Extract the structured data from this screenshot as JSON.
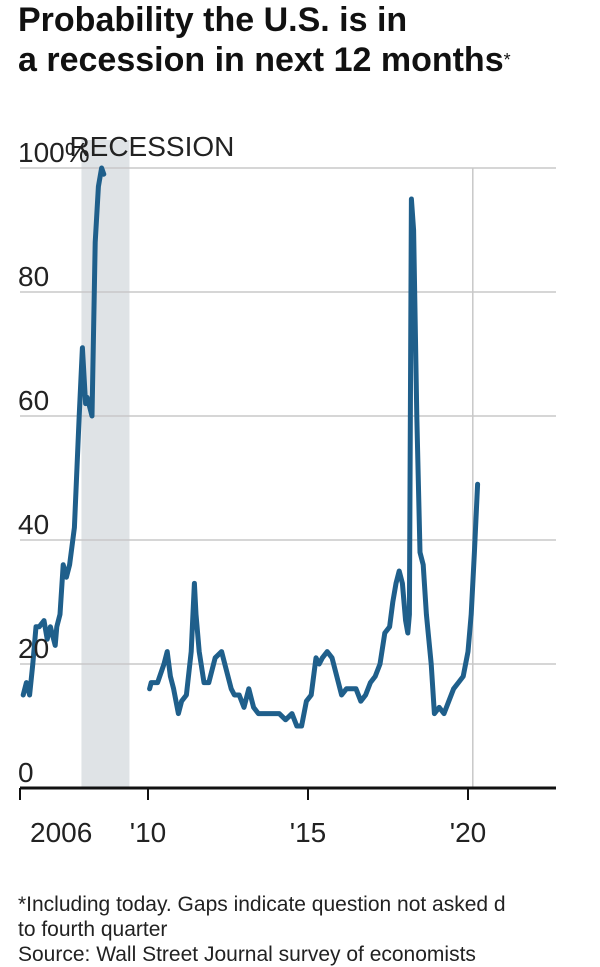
{
  "title": {
    "line1": "Probability the U.S. is in",
    "line2": "a recession in next 12 months",
    "marker": "*"
  },
  "footnote": {
    "line1": "*Including today. Gaps indicate question not asked d",
    "line2": "to fourth quarter",
    "line3": "Source: Wall Street Journal survey of economists"
  },
  "colors": {
    "line": "#1f5f8b",
    "recession": "#dfe3e6",
    "grid": "#c8c8c8",
    "axis": "#111111"
  },
  "chart_data": {
    "type": "line",
    "title": "Probability the U.S. is in a recession in next 12 months",
    "xlabel": "",
    "ylabel": "",
    "xlim": [
      2006.0,
      2022.75
    ],
    "ylim": [
      0,
      100
    ],
    "x_ticks": [
      {
        "value": 2006.0,
        "label": "2006"
      },
      {
        "value": 2010.0,
        "label": "'10"
      },
      {
        "value": 2015.0,
        "label": "'15"
      },
      {
        "value": 2020.0,
        "label": "'20"
      }
    ],
    "y_ticks": [
      {
        "value": 0,
        "label": "0"
      },
      {
        "value": 20,
        "label": "20"
      },
      {
        "value": 40,
        "label": "40"
      },
      {
        "value": 60,
        "label": "60"
      },
      {
        "value": 80,
        "label": "80"
      },
      {
        "value": 100,
        "label": "100%"
      }
    ],
    "grid": true,
    "shaded_regions": [
      {
        "start": 2007.92,
        "end": 2009.42,
        "label": "RECESSION"
      }
    ],
    "reference_lines": [
      {
        "x": 2020.15
      }
    ],
    "series": [
      {
        "values": [
          [
            2006.1,
            15
          ],
          [
            2006.2,
            17
          ],
          [
            2006.3,
            15
          ],
          [
            2006.4,
            20
          ],
          [
            2006.5,
            26
          ],
          [
            2006.6,
            26
          ],
          [
            2006.75,
            27
          ],
          [
            2006.85,
            24
          ],
          [
            2006.95,
            26
          ],
          [
            2007.1,
            23
          ],
          [
            2007.15,
            26
          ],
          [
            2007.25,
            28
          ],
          [
            2007.35,
            36
          ],
          [
            2007.45,
            34
          ],
          [
            2007.55,
            36
          ],
          [
            2007.7,
            42
          ],
          [
            2007.85,
            60
          ],
          [
            2007.95,
            71
          ],
          [
            2008.05,
            62
          ],
          [
            2008.1,
            63
          ],
          [
            2008.2,
            61
          ],
          [
            2008.25,
            60
          ],
          [
            2008.35,
            88
          ],
          [
            2008.45,
            97
          ],
          [
            2008.55,
            100
          ],
          [
            2008.62,
            99
          ]
        ]
      },
      {
        "values": [
          [
            2010.05,
            16
          ],
          [
            2010.1,
            17
          ],
          [
            2010.3,
            17
          ],
          [
            2010.5,
            20
          ],
          [
            2010.6,
            22
          ],
          [
            2010.7,
            18
          ],
          [
            2010.8,
            16
          ],
          [
            2010.95,
            12
          ],
          [
            2011.05,
            14
          ],
          [
            2011.2,
            15
          ],
          [
            2011.35,
            22
          ],
          [
            2011.45,
            33
          ],
          [
            2011.5,
            28
          ],
          [
            2011.6,
            22
          ],
          [
            2011.75,
            17
          ],
          [
            2011.9,
            17
          ],
          [
            2012.1,
            21
          ],
          [
            2012.3,
            22
          ],
          [
            2012.45,
            19
          ],
          [
            2012.6,
            16
          ],
          [
            2012.7,
            15
          ],
          [
            2012.85,
            15
          ],
          [
            2013.0,
            13
          ],
          [
            2013.15,
            16
          ],
          [
            2013.3,
            13
          ],
          [
            2013.45,
            12
          ],
          [
            2013.6,
            12
          ],
          [
            2013.75,
            12
          ],
          [
            2013.9,
            12
          ],
          [
            2014.1,
            12
          ],
          [
            2014.3,
            11
          ],
          [
            2014.5,
            12
          ],
          [
            2014.65,
            10
          ],
          [
            2014.8,
            10
          ],
          [
            2014.95,
            14
          ],
          [
            2015.1,
            15
          ],
          [
            2015.25,
            21
          ],
          [
            2015.35,
            20
          ],
          [
            2015.45,
            21
          ],
          [
            2015.6,
            22
          ],
          [
            2015.75,
            21
          ],
          [
            2015.9,
            18
          ],
          [
            2016.05,
            15
          ],
          [
            2016.2,
            16
          ],
          [
            2016.35,
            16
          ],
          [
            2016.5,
            16
          ],
          [
            2016.65,
            14
          ],
          [
            2016.8,
            15
          ],
          [
            2016.95,
            17
          ],
          [
            2017.1,
            18
          ],
          [
            2017.25,
            20
          ],
          [
            2017.4,
            25
          ],
          [
            2017.55,
            26
          ],
          [
            2017.65,
            30
          ],
          [
            2017.75,
            33
          ],
          [
            2017.85,
            35
          ],
          [
            2017.95,
            33
          ],
          [
            2018.05,
            27
          ],
          [
            2018.12,
            25
          ],
          [
            2018.17,
            28
          ],
          [
            2018.23,
            95
          ],
          [
            2018.3,
            90
          ],
          [
            2018.4,
            60
          ],
          [
            2018.5,
            38
          ],
          [
            2018.6,
            36
          ],
          [
            2018.7,
            28
          ],
          [
            2018.85,
            20
          ],
          [
            2018.95,
            12
          ],
          [
            2019.1,
            13
          ],
          [
            2019.25,
            12
          ],
          [
            2019.4,
            14
          ],
          [
            2019.55,
            16
          ],
          [
            2019.7,
            17
          ],
          [
            2019.85,
            18
          ],
          [
            2020.0,
            22
          ],
          [
            2020.1,
            28
          ],
          [
            2020.2,
            38
          ],
          [
            2020.3,
            49
          ]
        ]
      }
    ]
  }
}
